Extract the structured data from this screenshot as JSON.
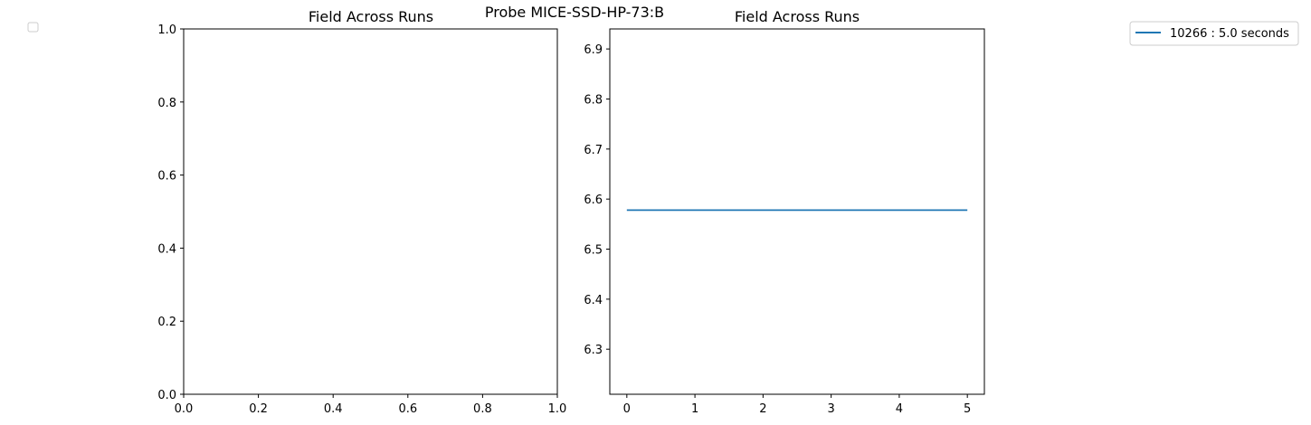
{
  "suptitle": "Probe MICE-SSD-HP-73:B",
  "chart_data": [
    {
      "type": "line",
      "title": "Field Across Runs",
      "xlim": [
        0.0,
        1.0
      ],
      "ylim": [
        0.0,
        1.0
      ],
      "xticks": [
        "0.0",
        "0.2",
        "0.4",
        "0.6",
        "0.8",
        "1.0"
      ],
      "yticks": [
        "0.0",
        "0.2",
        "0.4",
        "0.6",
        "0.8",
        "1.0"
      ],
      "series": [],
      "legend": {
        "placement": "top-left",
        "entries": []
      },
      "grid": false
    },
    {
      "type": "line",
      "title": "Field Across Runs",
      "xlim": [
        -0.25,
        5.25
      ],
      "ylim": [
        6.21,
        6.94
      ],
      "xticks": [
        "0",
        "1",
        "2",
        "3",
        "4",
        "5"
      ],
      "yticks": [
        "6.3",
        "6.4",
        "6.5",
        "6.6",
        "6.7",
        "6.8",
        "6.9"
      ],
      "series": [
        {
          "name": "10266 : 5.0 seconds",
          "color": "#1f77b4",
          "x": [
            0,
            5
          ],
          "y": [
            6.578,
            6.578
          ]
        }
      ],
      "legend": {
        "placement": "outside-top-right"
      },
      "grid": false
    }
  ]
}
